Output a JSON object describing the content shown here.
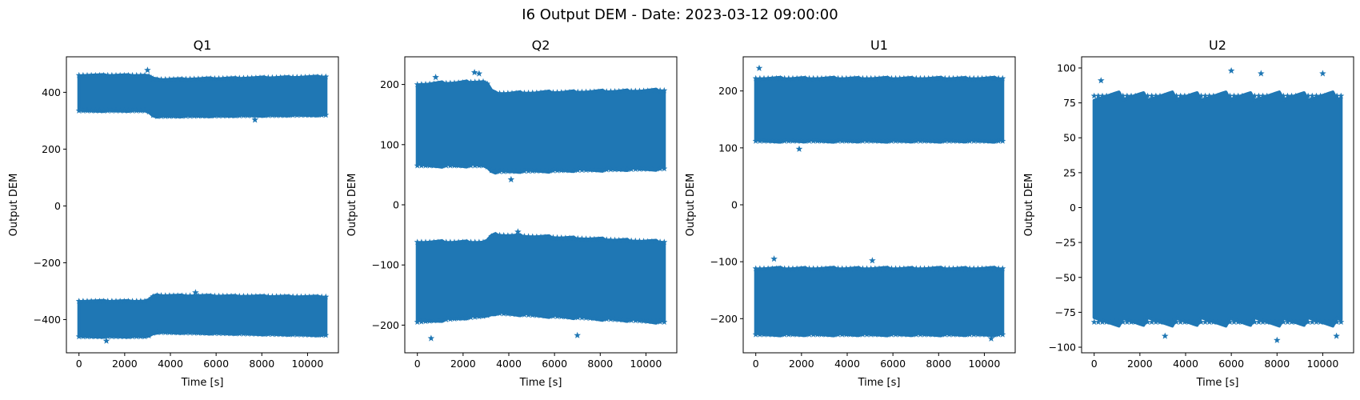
{
  "figure": {
    "title": "I6 Output DEM - Date: 2023-03-12 09:00:00",
    "series_color": "#1f77b4"
  },
  "chart_data": [
    {
      "type": "scatter",
      "marker": "star",
      "title": "Q1",
      "xlabel": "Time [s]",
      "ylabel": "Output DEM",
      "xlim": [
        -550,
        11350
      ],
      "ylim": [
        -517,
        525
      ],
      "xticks": [
        0,
        2000,
        4000,
        6000,
        8000,
        10000
      ],
      "yticks": [
        -400,
        -200,
        0,
        200,
        400
      ],
      "x_range": [
        0,
        10800
      ],
      "bands": [
        {
          "name": "upper",
          "points": [
            [
              0,
              335,
              460
            ],
            [
              3000,
              335,
              460
            ],
            [
              3300,
              315,
              445
            ],
            [
              10800,
              320,
              455
            ]
          ]
        },
        {
          "name": "lower",
          "points": [
            [
              0,
              -460,
              -335
            ],
            [
              3000,
              -460,
              -335
            ],
            [
              3300,
              -445,
              -315
            ],
            [
              10800,
              -455,
              -320
            ]
          ]
        }
      ],
      "outliers": [
        [
          3000,
          478
        ],
        [
          7700,
          303
        ],
        [
          5100,
          -305
        ],
        [
          1200,
          -475
        ]
      ]
    },
    {
      "type": "scatter",
      "marker": "star",
      "title": "Q2",
      "xlabel": "Time [s]",
      "ylabel": "Output DEM",
      "xlim": [
        -550,
        11350
      ],
      "ylim": [
        -246,
        246
      ],
      "xticks": [
        0,
        2000,
        4000,
        6000,
        8000,
        10000
      ],
      "yticks": [
        -200,
        -100,
        0,
        100,
        200
      ],
      "x_range": [
        0,
        10800
      ],
      "bands": [
        {
          "name": "upper",
          "points": [
            [
              0,
              65,
              200
            ],
            [
              3000,
              65,
              205
            ],
            [
              3300,
              55,
              185
            ],
            [
              10800,
              60,
              190
            ]
          ]
        },
        {
          "name": "lower",
          "points": [
            [
              0,
              -195,
              -62
            ],
            [
              3000,
              -185,
              -62
            ],
            [
              3300,
              -180,
              -50
            ],
            [
              10800,
              -195,
              -62
            ]
          ]
        }
      ],
      "outliers": [
        [
          2500,
          220
        ],
        [
          2700,
          218
        ],
        [
          800,
          212
        ],
        [
          4100,
          42
        ],
        [
          600,
          -222
        ],
        [
          7000,
          -217
        ],
        [
          4400,
          -45
        ]
      ]
    },
    {
      "type": "scatter",
      "marker": "star",
      "title": "U1",
      "xlabel": "Time [s]",
      "ylabel": "Output DEM",
      "xlim": [
        -550,
        11350
      ],
      "ylim": [
        -260,
        260
      ],
      "xticks": [
        0,
        2000,
        4000,
        6000,
        8000,
        10000
      ],
      "yticks": [
        -200,
        -100,
        0,
        100,
        200
      ],
      "x_range": [
        0,
        10800
      ],
      "bands": [
        {
          "name": "upper",
          "points": [
            [
              0,
              112,
              222
            ],
            [
              10800,
              112,
              222
            ]
          ]
        },
        {
          "name": "lower",
          "points": [
            [
              0,
              -228,
              -112
            ],
            [
              10800,
              -228,
              -112
            ]
          ]
        }
      ],
      "outliers": [
        [
          150,
          240
        ],
        [
          1900,
          98
        ],
        [
          800,
          -95
        ],
        [
          5100,
          -98
        ],
        [
          10300,
          -235
        ]
      ]
    },
    {
      "type": "scatter",
      "marker": "star",
      "title": "U2",
      "xlabel": "Time [s]",
      "ylabel": "Output DEM",
      "xlim": [
        -550,
        11350
      ],
      "ylim": [
        -104,
        108
      ],
      "xticks": [
        0,
        2000,
        4000,
        6000,
        8000,
        10000
      ],
      "yticks": [
        -100,
        -75,
        -50,
        -25,
        0,
        25,
        50,
        75,
        100
      ],
      "x_range": [
        0,
        10800
      ],
      "bands": [
        {
          "name": "main",
          "points": [
            [
              0,
              -82,
              80
            ],
            [
              10800,
              -82,
              80
            ]
          ]
        }
      ],
      "outliers": [
        [
          6000,
          98
        ],
        [
          10000,
          96
        ],
        [
          300,
          91
        ],
        [
          7300,
          96
        ],
        [
          8000,
          -95
        ],
        [
          3100,
          -92
        ],
        [
          10600,
          -92
        ]
      ]
    }
  ]
}
